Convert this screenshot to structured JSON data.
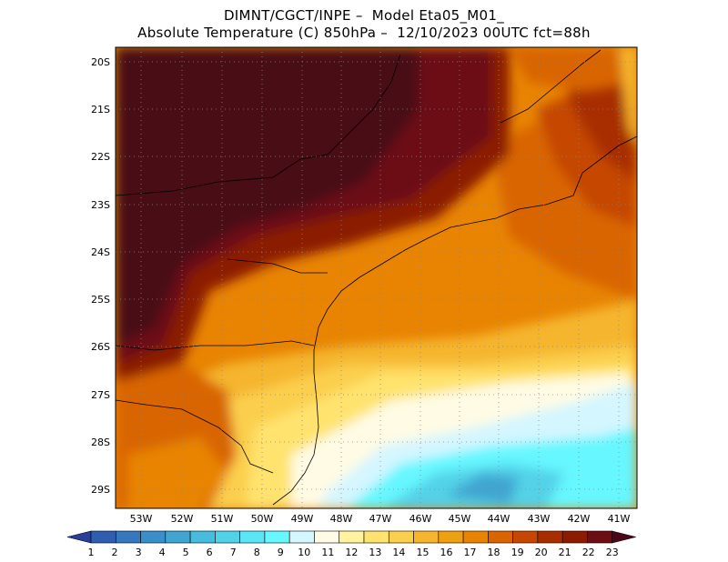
{
  "header": {
    "line1": "DIMNT/CGCT/INPE –  Model Eta05_M01_",
    "line2": "Absolute Temperature (C) 850hPa –  12/10/2023 00UTC fct=88h"
  },
  "map": {
    "lat_labels": [
      "20S",
      "21S",
      "22S",
      "23S",
      "24S",
      "25S",
      "26S",
      "27S",
      "28S",
      "29S"
    ],
    "lon_labels": [
      "53W",
      "52W",
      "51W",
      "50W",
      "49W",
      "48W",
      "47W",
      "46W",
      "45W",
      "44W",
      "43W",
      "42W",
      "41W"
    ],
    "grid": "dotted"
  },
  "colorbar": {
    "labels": [
      "1",
      "2",
      "3",
      "4",
      "5",
      "6",
      "7",
      "8",
      "9",
      "10",
      "11",
      "12",
      "13",
      "14",
      "15",
      "16",
      "17",
      "18",
      "19",
      "20",
      "21",
      "22",
      "23"
    ],
    "colors": [
      "#2a3f99",
      "#2f5db0",
      "#3578bd",
      "#3a8fc8",
      "#40a5d1",
      "#48bcdc",
      "#52d2e8",
      "#5ae6f4",
      "#66f7ff",
      "#d4f6ff",
      "#fffbe4",
      "#fff3a0",
      "#ffe36e",
      "#fbcf4e",
      "#f5b52e",
      "#eea010",
      "#e88402",
      "#d96500",
      "#c54700",
      "#a82e00",
      "#8c1b00",
      "#6c0e14",
      "#4a0818"
    ]
  }
}
